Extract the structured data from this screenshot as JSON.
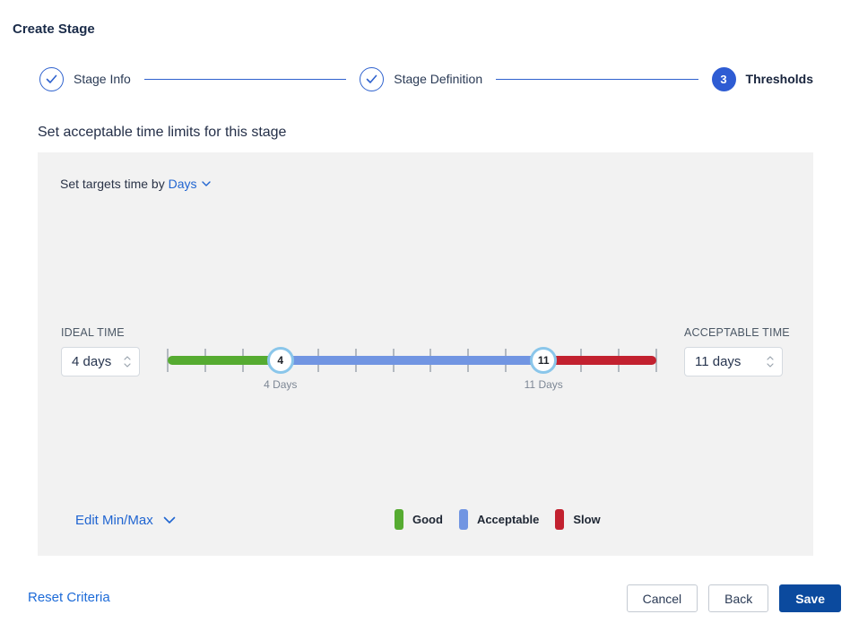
{
  "window": {
    "title": "Create Stage"
  },
  "stepper": {
    "steps": [
      {
        "label": "Stage Info",
        "state": "complete"
      },
      {
        "label": "Stage Definition",
        "state": "complete"
      },
      {
        "label": "Thresholds",
        "state": "active",
        "number": "3"
      }
    ]
  },
  "section_heading": "Set acceptable time limits for this stage",
  "targets_bar": {
    "prefix": "Set targets time by",
    "selected_unit": "Days"
  },
  "ideal_time": {
    "label": "IDEAL TIME",
    "value": "4 days"
  },
  "acceptable_time": {
    "label": "ACCEPTABLE TIME",
    "value": "11 days"
  },
  "slider": {
    "min_day": 1,
    "max_day": 14,
    "ideal_day": 4,
    "acceptable_day": 11,
    "ideal_handle_text": "4",
    "acceptable_handle_text": "11",
    "ideal_label": "4 Days",
    "acceptable_label": "11 Days",
    "colors": {
      "good": "#56AB31",
      "acceptable": "#7195E2",
      "slow": "#C2212F",
      "tick": "#B3B9C0",
      "handle_ring": "#8AC6EA"
    }
  },
  "edit_min_max_label": "Edit Min/Max",
  "legend": {
    "items": [
      {
        "label": "Good",
        "color": "#56AB31"
      },
      {
        "label": "Acceptable",
        "color": "#7195E2"
      },
      {
        "label": "Slow",
        "color": "#C2212F"
      }
    ]
  },
  "footer": {
    "reset_label": "Reset Criteria",
    "cancel_label": "Cancel",
    "back_label": "Back",
    "save_label": "Save"
  },
  "accent_colors": {
    "stepper_blue": "#2F62CE",
    "active_step_blue": "#2E5CD3",
    "link_blue": "#2065D1",
    "save_button_blue": "#0B4A9E",
    "panel_gray": "#F2F2F2"
  }
}
